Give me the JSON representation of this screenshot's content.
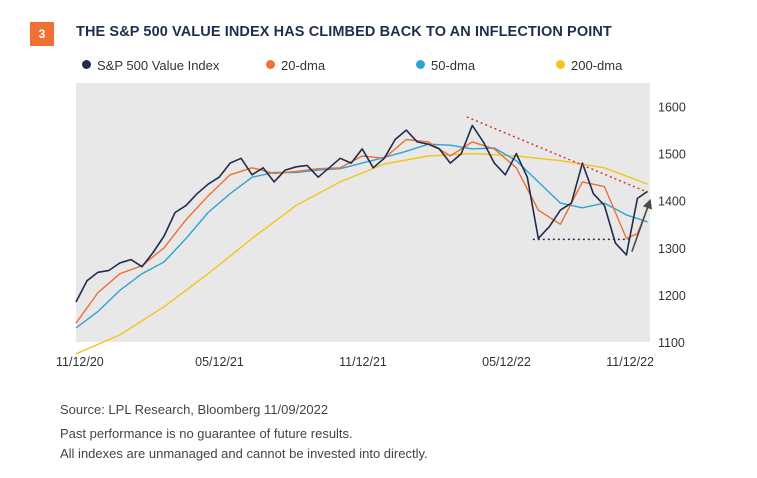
{
  "header": {
    "figure_number": "3",
    "title": "THE S&P 500 VALUE INDEX HAS CLIMBED BACK TO AN INFLECTION POINT"
  },
  "footer": {
    "source": "Source: LPL Research, Bloomberg  11/09/2022",
    "disclaimer_1": "Past performance is no guarantee of future results.",
    "disclaimer_2": "All indexes are unmanaged and cannot be invested into directly."
  },
  "colors": {
    "badge": "#ee7032",
    "title": "#1f2d4e",
    "plot_background": "#e8e8e8",
    "index": "#1f2d4e",
    "dma20": "#ee7032",
    "dma50": "#2ea3d6",
    "dma200": "#f2c51a",
    "resistance": "#e0312f",
    "support": "#1f2d4e",
    "arrow": "#4a4a4a"
  },
  "chart_data": {
    "type": "line",
    "title": "THE S&P 500 VALUE INDEX HAS CLIMBED BACK TO AN INFLECTION POINT",
    "xlabel": "",
    "ylabel": "",
    "x_ticks": [
      "11/12/20",
      "05/12/21",
      "11/12/21",
      "05/12/22",
      "11/12/22"
    ],
    "y_ticks": [
      1100,
      1200,
      1300,
      1400,
      1500,
      1600
    ],
    "ylim": [
      1100,
      1650
    ],
    "xlim": [
      "2020-11-12",
      "2022-11-12"
    ],
    "grid": false,
    "legend_position": "top",
    "series": [
      {
        "name": "S&P 500 Value Index",
        "color_key": "index",
        "points": [
          [
            "2020-11-12",
            1185
          ],
          [
            "2020-11-26",
            1230
          ],
          [
            "2020-12-10",
            1248
          ],
          [
            "2020-12-24",
            1252
          ],
          [
            "2021-01-07",
            1268
          ],
          [
            "2021-01-21",
            1275
          ],
          [
            "2021-02-04",
            1260
          ],
          [
            "2021-02-18",
            1290
          ],
          [
            "2021-03-04",
            1325
          ],
          [
            "2021-03-18",
            1375
          ],
          [
            "2021-04-01",
            1390
          ],
          [
            "2021-04-15",
            1415
          ],
          [
            "2021-04-29",
            1435
          ],
          [
            "2021-05-13",
            1450
          ],
          [
            "2021-05-27",
            1480
          ],
          [
            "2021-06-10",
            1490
          ],
          [
            "2021-06-24",
            1455
          ],
          [
            "2021-07-08",
            1470
          ],
          [
            "2021-07-22",
            1440
          ],
          [
            "2021-08-05",
            1465
          ],
          [
            "2021-08-19",
            1472
          ],
          [
            "2021-09-02",
            1475
          ],
          [
            "2021-09-16",
            1450
          ],
          [
            "2021-09-30",
            1470
          ],
          [
            "2021-10-14",
            1490
          ],
          [
            "2021-10-28",
            1480
          ],
          [
            "2021-11-11",
            1510
          ],
          [
            "2021-11-25",
            1470
          ],
          [
            "2021-12-09",
            1490
          ],
          [
            "2021-12-23",
            1530
          ],
          [
            "2022-01-06",
            1550
          ],
          [
            "2022-01-20",
            1525
          ],
          [
            "2022-02-03",
            1520
          ],
          [
            "2022-02-17",
            1510
          ],
          [
            "2022-03-03",
            1480
          ],
          [
            "2022-03-17",
            1500
          ],
          [
            "2022-03-31",
            1560
          ],
          [
            "2022-04-14",
            1525
          ],
          [
            "2022-04-28",
            1480
          ],
          [
            "2022-05-12",
            1455
          ],
          [
            "2022-05-26",
            1500
          ],
          [
            "2022-06-09",
            1450
          ],
          [
            "2022-06-23",
            1320
          ],
          [
            "2022-07-07",
            1345
          ],
          [
            "2022-07-21",
            1380
          ],
          [
            "2022-08-04",
            1395
          ],
          [
            "2022-08-18",
            1480
          ],
          [
            "2022-09-01",
            1415
          ],
          [
            "2022-09-15",
            1390
          ],
          [
            "2022-09-29",
            1310
          ],
          [
            "2022-10-13",
            1285
          ],
          [
            "2022-10-27",
            1405
          ],
          [
            "2022-11-09",
            1420
          ]
        ]
      },
      {
        "name": "20-dma",
        "color_key": "dma20",
        "points": [
          [
            "2020-11-12",
            1140
          ],
          [
            "2020-12-10",
            1205
          ],
          [
            "2021-01-07",
            1245
          ],
          [
            "2021-02-04",
            1262
          ],
          [
            "2021-03-04",
            1300
          ],
          [
            "2021-04-01",
            1360
          ],
          [
            "2021-04-29",
            1410
          ],
          [
            "2021-05-27",
            1455
          ],
          [
            "2021-06-24",
            1470
          ],
          [
            "2021-07-22",
            1458
          ],
          [
            "2021-08-19",
            1462
          ],
          [
            "2021-09-16",
            1468
          ],
          [
            "2021-10-14",
            1470
          ],
          [
            "2021-11-11",
            1495
          ],
          [
            "2021-12-09",
            1490
          ],
          [
            "2022-01-06",
            1530
          ],
          [
            "2022-02-03",
            1525
          ],
          [
            "2022-03-03",
            1495
          ],
          [
            "2022-03-31",
            1525
          ],
          [
            "2022-04-28",
            1510
          ],
          [
            "2022-05-26",
            1470
          ],
          [
            "2022-06-23",
            1380
          ],
          [
            "2022-07-21",
            1350
          ],
          [
            "2022-08-18",
            1440
          ],
          [
            "2022-09-15",
            1430
          ],
          [
            "2022-10-13",
            1320
          ],
          [
            "2022-10-27",
            1330
          ],
          [
            "2022-11-09",
            1385
          ]
        ]
      },
      {
        "name": "50-dma",
        "color_key": "dma50",
        "points": [
          [
            "2020-11-12",
            1130
          ],
          [
            "2020-12-10",
            1165
          ],
          [
            "2021-01-07",
            1210
          ],
          [
            "2021-02-04",
            1245
          ],
          [
            "2021-03-04",
            1270
          ],
          [
            "2021-04-01",
            1320
          ],
          [
            "2021-04-29",
            1375
          ],
          [
            "2021-05-27",
            1415
          ],
          [
            "2021-06-24",
            1450
          ],
          [
            "2021-07-22",
            1460
          ],
          [
            "2021-08-19",
            1460
          ],
          [
            "2021-09-16",
            1465
          ],
          [
            "2021-10-14",
            1468
          ],
          [
            "2021-11-11",
            1480
          ],
          [
            "2021-12-09",
            1492
          ],
          [
            "2022-01-06",
            1505
          ],
          [
            "2022-02-03",
            1520
          ],
          [
            "2022-03-03",
            1518
          ],
          [
            "2022-03-31",
            1510
          ],
          [
            "2022-04-28",
            1512
          ],
          [
            "2022-05-26",
            1485
          ],
          [
            "2022-06-23",
            1440
          ],
          [
            "2022-07-21",
            1395
          ],
          [
            "2022-08-18",
            1385
          ],
          [
            "2022-09-15",
            1395
          ],
          [
            "2022-10-13",
            1370
          ],
          [
            "2022-11-09",
            1355
          ]
        ]
      },
      {
        "name": "200-dma",
        "color_key": "dma200",
        "points": [
          [
            "2020-11-12",
            1075
          ],
          [
            "2021-01-07",
            1115
          ],
          [
            "2021-03-04",
            1175
          ],
          [
            "2021-04-29",
            1245
          ],
          [
            "2021-06-24",
            1320
          ],
          [
            "2021-08-19",
            1390
          ],
          [
            "2021-10-14",
            1440
          ],
          [
            "2021-12-09",
            1478
          ],
          [
            "2022-02-03",
            1495
          ],
          [
            "2022-03-31",
            1500
          ],
          [
            "2022-05-26",
            1495
          ],
          [
            "2022-07-21",
            1485
          ],
          [
            "2022-09-15",
            1470
          ],
          [
            "2022-11-09",
            1435
          ]
        ]
      }
    ],
    "annotations": [
      {
        "type": "resistance_line",
        "style": "dotted",
        "color_key": "resistance",
        "from": [
          "2022-03-24",
          1578
        ],
        "to": [
          "2022-11-09",
          1418
        ]
      },
      {
        "type": "support_line",
        "style": "dotted",
        "color_key": "support",
        "from": [
          "2022-06-16",
          1318
        ],
        "to": [
          "2022-10-20",
          1318
        ]
      },
      {
        "type": "arrow",
        "color_key": "arrow",
        "from": [
          "2022-10-20",
          1292
        ],
        "to": [
          "2022-11-12",
          1400
        ]
      }
    ]
  }
}
